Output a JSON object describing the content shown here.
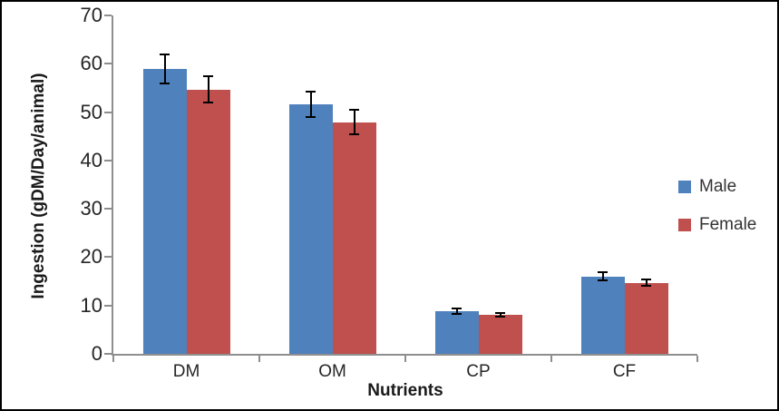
{
  "chart_data": {
    "type": "bar",
    "title": "",
    "xlabel": "Nutrients",
    "ylabel": "Ingestion (gDM/Day/animal)",
    "categories": [
      "DM",
      "OM",
      "CP",
      "CF"
    ],
    "series": [
      {
        "name": "Male",
        "color": "#4F81BD",
        "values": [
          59.0,
          51.6,
          8.8,
          16.0
        ],
        "errors": [
          3.0,
          2.7,
          0.5,
          0.8
        ]
      },
      {
        "name": "Female",
        "color": "#C0504D",
        "values": [
          54.7,
          47.9,
          8.1,
          14.7
        ],
        "errors": [
          2.8,
          2.5,
          0.4,
          0.6
        ]
      }
    ],
    "ylim": [
      0,
      70
    ],
    "ytick_step": 10,
    "grid": "off",
    "legend_position": "right",
    "error_bar_color": "#000000",
    "axis_color": "#8e8e8e"
  }
}
